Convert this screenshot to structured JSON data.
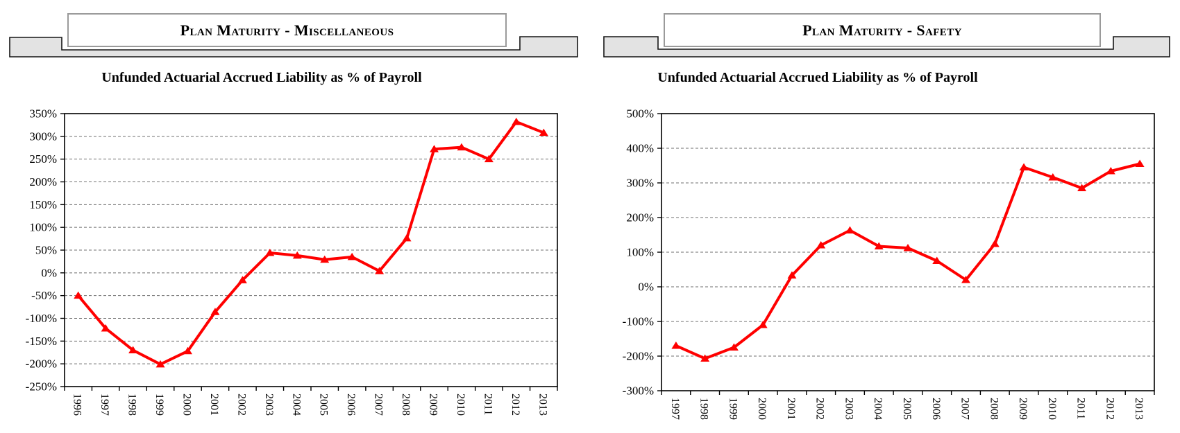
{
  "sections": [
    {
      "title": "Plan Maturity - Miscellaneous"
    },
    {
      "title": "Plan Maturity - Safety"
    }
  ],
  "accent_color": "#ff0000",
  "banner_fill_color": "#e3e3e3",
  "chart_data": [
    {
      "type": "line",
      "title": "Unfunded Actuarial Accrued Liability as % of Payroll",
      "categories": [
        "1996",
        "1997",
        "1998",
        "1999",
        "2000",
        "2001",
        "2002",
        "2003",
        "2004",
        "2005",
        "2006",
        "2007",
        "2008",
        "2009",
        "2010",
        "2011",
        "2012",
        "2013"
      ],
      "values": [
        -50,
        -122,
        -170,
        -201,
        -172,
        -86,
        -16,
        44,
        38,
        29,
        35,
        4,
        76,
        272,
        276,
        250,
        332,
        308
      ],
      "series_color": "#ff0000",
      "marker": "triangle",
      "xlabel": "",
      "ylabel": "",
      "ylim": [
        -250,
        350
      ],
      "ytick_step": 50,
      "ytick_format": "percent",
      "grid": "horizontal-dashed",
      "legend": "none",
      "x_label_rotation": 90
    },
    {
      "type": "line",
      "title": "Unfunded Actuarial Accrued Liability as % of Payroll",
      "categories": [
        "1997",
        "1998",
        "1999",
        "2000",
        "2001",
        "2002",
        "2003",
        "2004",
        "2005",
        "2006",
        "2007",
        "2008",
        "2009",
        "2010",
        "2011",
        "2012",
        "2013"
      ],
      "values": [
        -170,
        -207,
        -175,
        -110,
        33,
        120,
        163,
        117,
        112,
        75,
        20,
        124,
        345,
        316,
        285,
        334,
        355
      ],
      "series_color": "#ff0000",
      "marker": "triangle",
      "xlabel": "",
      "ylabel": "",
      "ylim": [
        -300,
        500
      ],
      "ytick_step": 100,
      "ytick_format": "percent",
      "grid": "horizontal-dashed",
      "legend": "none",
      "x_label_rotation": 90
    }
  ]
}
